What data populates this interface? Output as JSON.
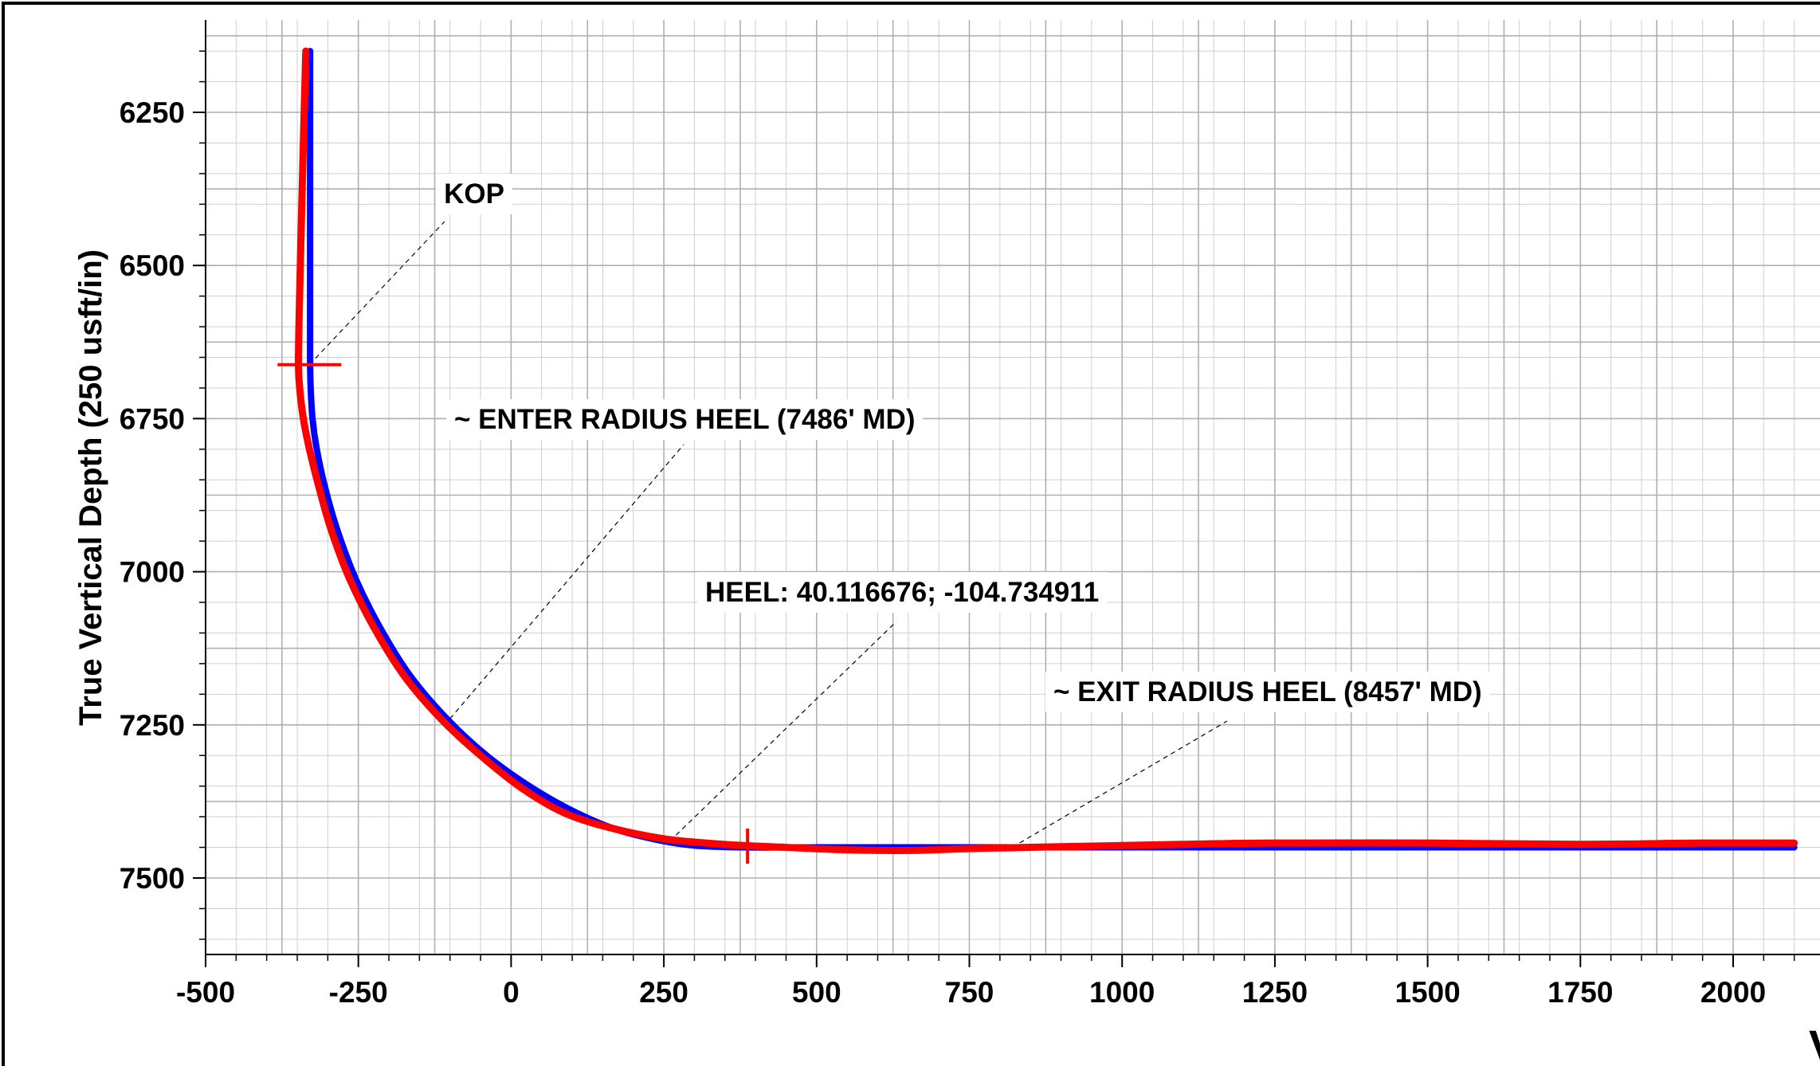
{
  "chart_data": {
    "type": "line",
    "title": "",
    "ylabel": "True Vertical Depth (250 usft/in)",
    "xlabel": "",
    "xlim": [
      -500,
      2100
    ],
    "ylim": [
      6150,
      7630
    ],
    "y_inverted": true,
    "grid": true,
    "x_ticks": [
      -500,
      -250,
      0,
      250,
      500,
      750,
      1000,
      1250,
      1500,
      1750,
      2000
    ],
    "x_tick_labels": [
      "-500",
      "-250",
      "0",
      "250",
      "500",
      "750",
      "1000",
      "1250",
      "1500",
      "1750",
      "2000"
    ],
    "y_ticks": [
      6250,
      6500,
      6750,
      7000,
      7250,
      7500
    ],
    "y_tick_labels": [
      "6250",
      "6500",
      "6750",
      "7000",
      "7250",
      "7500"
    ],
    "colors": {
      "plan": "#0000ff",
      "actual": "#ff0000",
      "grid": "#b0b0b0",
      "axis": "#000000"
    },
    "series": [
      {
        "color": "#0000ff",
        "x": [
          -329,
          -329,
          -329,
          -329,
          -328,
          -325,
          -318,
          -305,
          -285,
          -255,
          -215,
          -165,
          -105,
          -40,
          30,
          100,
          170,
          240,
          300,
          380,
          500,
          750,
          1000,
          1250,
          1500,
          1750,
          2000,
          2100
        ],
        "y": [
          6150,
          6300,
          6500,
          6650,
          6700,
          6750,
          6800,
          6860,
          6930,
          7010,
          7090,
          7170,
          7240,
          7300,
          7350,
          7390,
          7420,
          7438,
          7447,
          7450,
          7450,
          7450,
          7450,
          7450,
          7450,
          7450,
          7450,
          7450
        ]
      },
      {
        "color": "#ff0000",
        "x": [
          -336,
          -340,
          -345,
          -348,
          -346,
          -340,
          -330,
          -315,
          -295,
          -265,
          -225,
          -175,
          -115,
          -50,
          20,
          90,
          170,
          250,
          320,
          380,
          450,
          550,
          650,
          750,
          850,
          1000,
          1100,
          1250,
          1500,
          1750,
          1950,
          2100
        ],
        "y": [
          6150,
          6300,
          6500,
          6650,
          6700,
          6750,
          6800,
          6860,
          6930,
          7010,
          7090,
          7170,
          7240,
          7300,
          7355,
          7395,
          7420,
          7436,
          7443,
          7447,
          7450,
          7454,
          7455,
          7452,
          7450,
          7447,
          7445,
          7443,
          7443,
          7445,
          7443,
          7443
        ]
      }
    ],
    "markers": [
      {
        "color": "#ff0000",
        "x": -330,
        "y": 6662,
        "orientation": "horizontal"
      },
      {
        "color": "#ff0000",
        "x": 387,
        "y": 7448,
        "orientation": "vertical"
      }
    ],
    "annotations": [
      {
        "text": "KOP",
        "x": -330,
        "y": 6662
      },
      {
        "text": "~ ENTER RADIUS HEEL (7486' MD)",
        "x": -100,
        "y": 7240
      },
      {
        "text": "HEEL:  40.116676;  -104.734911",
        "x": 270,
        "y": 7430
      },
      {
        "text": "~ EXIT RADIUS HEEL (8457' MD)",
        "x": 820,
        "y": 7450
      }
    ]
  }
}
